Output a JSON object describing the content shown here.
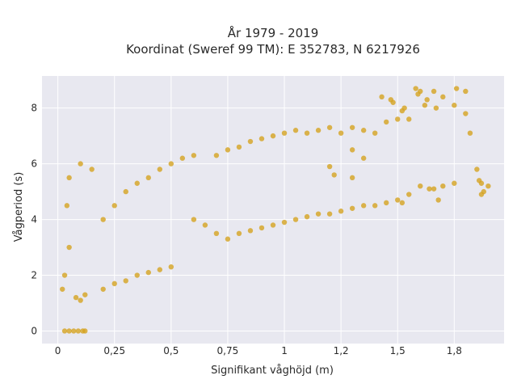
{
  "chart_data": {
    "type": "scatter",
    "title_lines": [
      "År 1979 - 2019",
      "Koordinat (Sweref 99 TM): E 352783, N 6217926"
    ],
    "xlabel": "Signifikant våghöjd (m)",
    "ylabel": "Vågperiod (s)",
    "xlim": [
      -0.07,
      1.97
    ],
    "ylim": [
      -0.45,
      9.15
    ],
    "xticks": [
      0,
      0.25,
      0.5,
      0.75,
      1,
      1.25,
      1.5,
      1.75
    ],
    "xtick_labels": [
      "0",
      "0,25",
      "0,5",
      "0,75",
      "1",
      "1,2",
      "1,5",
      "1,8"
    ],
    "yticks": [
      0,
      2,
      4,
      6,
      8
    ],
    "ytick_labels": [
      "0",
      "2",
      "4",
      "6",
      "8"
    ],
    "grid": true,
    "colors": {
      "marker": "#d4a321",
      "plot_bg": "#e8e8f0",
      "grid": "#ffffff"
    },
    "series": [
      {
        "values": [
          [
            0.03,
            0
          ],
          [
            0.05,
            0
          ],
          [
            0.07,
            0
          ],
          [
            0.09,
            0
          ],
          [
            0.11,
            0
          ],
          [
            0.12,
            0
          ],
          [
            0.02,
            1.5
          ],
          [
            0.03,
            2.0
          ],
          [
            0.05,
            3.0
          ],
          [
            0.05,
            5.5
          ],
          [
            0.04,
            4.5
          ],
          [
            0.08,
            1.2
          ],
          [
            0.1,
            1.1
          ],
          [
            0.12,
            1.3
          ],
          [
            0.1,
            6.0
          ],
          [
            0.15,
            5.8
          ],
          [
            0.2,
            1.5
          ],
          [
            0.25,
            1.7
          ],
          [
            0.3,
            1.8
          ],
          [
            0.35,
            2.0
          ],
          [
            0.4,
            2.1
          ],
          [
            0.45,
            2.2
          ],
          [
            0.5,
            2.3
          ],
          [
            0.2,
            4.0
          ],
          [
            0.25,
            4.5
          ],
          [
            0.3,
            5.0
          ],
          [
            0.35,
            5.3
          ],
          [
            0.4,
            5.5
          ],
          [
            0.45,
            5.8
          ],
          [
            0.5,
            6.0
          ],
          [
            0.55,
            6.2
          ],
          [
            0.6,
            6.3
          ],
          [
            0.6,
            4.0
          ],
          [
            0.65,
            3.8
          ],
          [
            0.7,
            3.5
          ],
          [
            0.75,
            3.3
          ],
          [
            0.7,
            6.3
          ],
          [
            0.75,
            6.5
          ],
          [
            0.8,
            6.6
          ],
          [
            0.85,
            6.8
          ],
          [
            0.9,
            6.9
          ],
          [
            0.95,
            7.0
          ],
          [
            1.0,
            7.1
          ],
          [
            1.05,
            7.2
          ],
          [
            1.1,
            7.1
          ],
          [
            1.15,
            7.2
          ],
          [
            1.2,
            7.3
          ],
          [
            1.25,
            7.1
          ],
          [
            1.3,
            7.3
          ],
          [
            1.35,
            7.2
          ],
          [
            1.4,
            7.1
          ],
          [
            1.45,
            7.5
          ],
          [
            1.5,
            7.6
          ],
          [
            1.52,
            7.9
          ],
          [
            1.55,
            7.6
          ],
          [
            1.43,
            8.4
          ],
          [
            1.47,
            8.3
          ],
          [
            1.48,
            8.2
          ],
          [
            1.53,
            8.0
          ],
          [
            1.58,
            8.7
          ],
          [
            1.6,
            8.6
          ],
          [
            1.59,
            8.5
          ],
          [
            1.63,
            8.3
          ],
          [
            1.66,
            8.6
          ],
          [
            1.7,
            8.4
          ],
          [
            1.76,
            8.7
          ],
          [
            1.8,
            8.6
          ],
          [
            1.75,
            8.1
          ],
          [
            1.62,
            8.1
          ],
          [
            1.67,
            8.0
          ],
          [
            1.8,
            7.8
          ],
          [
            1.82,
            7.1
          ],
          [
            1.85,
            5.8
          ],
          [
            1.86,
            5.4
          ],
          [
            1.87,
            5.3
          ],
          [
            1.9,
            5.2
          ],
          [
            1.88,
            5.0
          ],
          [
            1.87,
            4.9
          ],
          [
            1.7,
            5.2
          ],
          [
            1.75,
            5.3
          ],
          [
            1.6,
            5.2
          ],
          [
            1.64,
            5.1
          ],
          [
            1.66,
            5.1
          ],
          [
            1.68,
            4.7
          ],
          [
            1.52,
            4.6
          ],
          [
            1.55,
            4.9
          ],
          [
            1.5,
            4.7
          ],
          [
            1.45,
            4.6
          ],
          [
            1.4,
            4.5
          ],
          [
            1.35,
            4.5
          ],
          [
            1.3,
            4.4
          ],
          [
            1.25,
            4.3
          ],
          [
            1.2,
            4.2
          ],
          [
            1.15,
            4.2
          ],
          [
            1.1,
            4.1
          ],
          [
            1.05,
            4.0
          ],
          [
            1.0,
            3.9
          ],
          [
            0.95,
            3.8
          ],
          [
            0.9,
            3.7
          ],
          [
            0.85,
            3.6
          ],
          [
            0.8,
            3.5
          ],
          [
            1.3,
            5.5
          ],
          [
            1.35,
            6.2
          ],
          [
            1.3,
            6.5
          ],
          [
            1.22,
            5.6
          ],
          [
            1.2,
            5.9
          ]
        ]
      }
    ]
  }
}
